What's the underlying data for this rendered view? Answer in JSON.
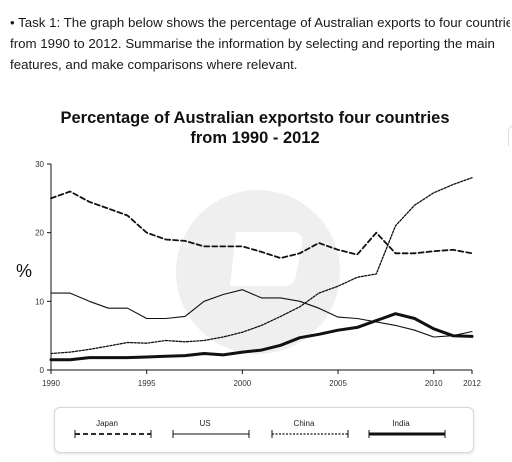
{
  "task": {
    "line1": "• Task 1: The graph below shows the percentage of Australian exports to four countrie",
    "line2": "from 1990 to 2012. Summarise the information by selecting and reporting the main",
    "line3": "features, and make comparisons where relevant."
  },
  "chart_data": {
    "type": "line",
    "title_line1": "Percentage of Australian exportsto four countries",
    "title_line2": "from 1990 - 2012",
    "ylabel": "%",
    "xlabel": "",
    "xlim": [
      1990,
      2012
    ],
    "ylim": [
      0,
      30
    ],
    "xticks": [
      1990,
      1995,
      2000,
      2005,
      2010,
      2012
    ],
    "yticks": [
      0,
      10,
      20,
      30
    ],
    "grid": false,
    "legend_position": "bottom",
    "x": [
      1990,
      1991,
      1992,
      1993,
      1994,
      1995,
      1996,
      1997,
      1998,
      1999,
      2000,
      2001,
      2002,
      2003,
      2004,
      2005,
      2006,
      2007,
      2008,
      2009,
      2010,
      2011,
      2012
    ],
    "series": [
      {
        "name": "Japan",
        "style": "dashed-medium",
        "values": [
          25,
          26,
          24.5,
          23.5,
          22.5,
          20,
          19,
          18.8,
          18,
          18,
          18,
          17.2,
          16.3,
          17,
          18.5,
          17.5,
          16.8,
          20,
          17,
          17,
          17.3,
          17.5,
          17
        ]
      },
      {
        "name": "US",
        "style": "solid-thin",
        "values": [
          11.2,
          11.2,
          10,
          9,
          9,
          7.5,
          7.5,
          7.8,
          10,
          11,
          11.7,
          10.5,
          10.5,
          10,
          9,
          7.7,
          7.5,
          7,
          6.5,
          5.8,
          4.8,
          5,
          5.6
        ]
      },
      {
        "name": "China",
        "style": "dotted-thin",
        "values": [
          2.4,
          2.6,
          3,
          3.5,
          4,
          3.9,
          4.3,
          4.1,
          4.3,
          4.8,
          5.5,
          6.5,
          7.8,
          9.2,
          11.2,
          12.2,
          13.5,
          14,
          21,
          24,
          25.8,
          27,
          28
        ]
      },
      {
        "name": "India",
        "style": "solid-thick",
        "values": [
          1.5,
          1.5,
          1.8,
          1.8,
          1.8,
          1.9,
          2,
          2.1,
          2.4,
          2.2,
          2.6,
          2.9,
          3.6,
          4.7,
          5.2,
          5.8,
          6.2,
          7.2,
          8.2,
          7.5,
          6,
          5,
          4.9
        ]
      }
    ]
  },
  "colors": {
    "line": "#111111",
    "watermark": "#eeeeee"
  }
}
